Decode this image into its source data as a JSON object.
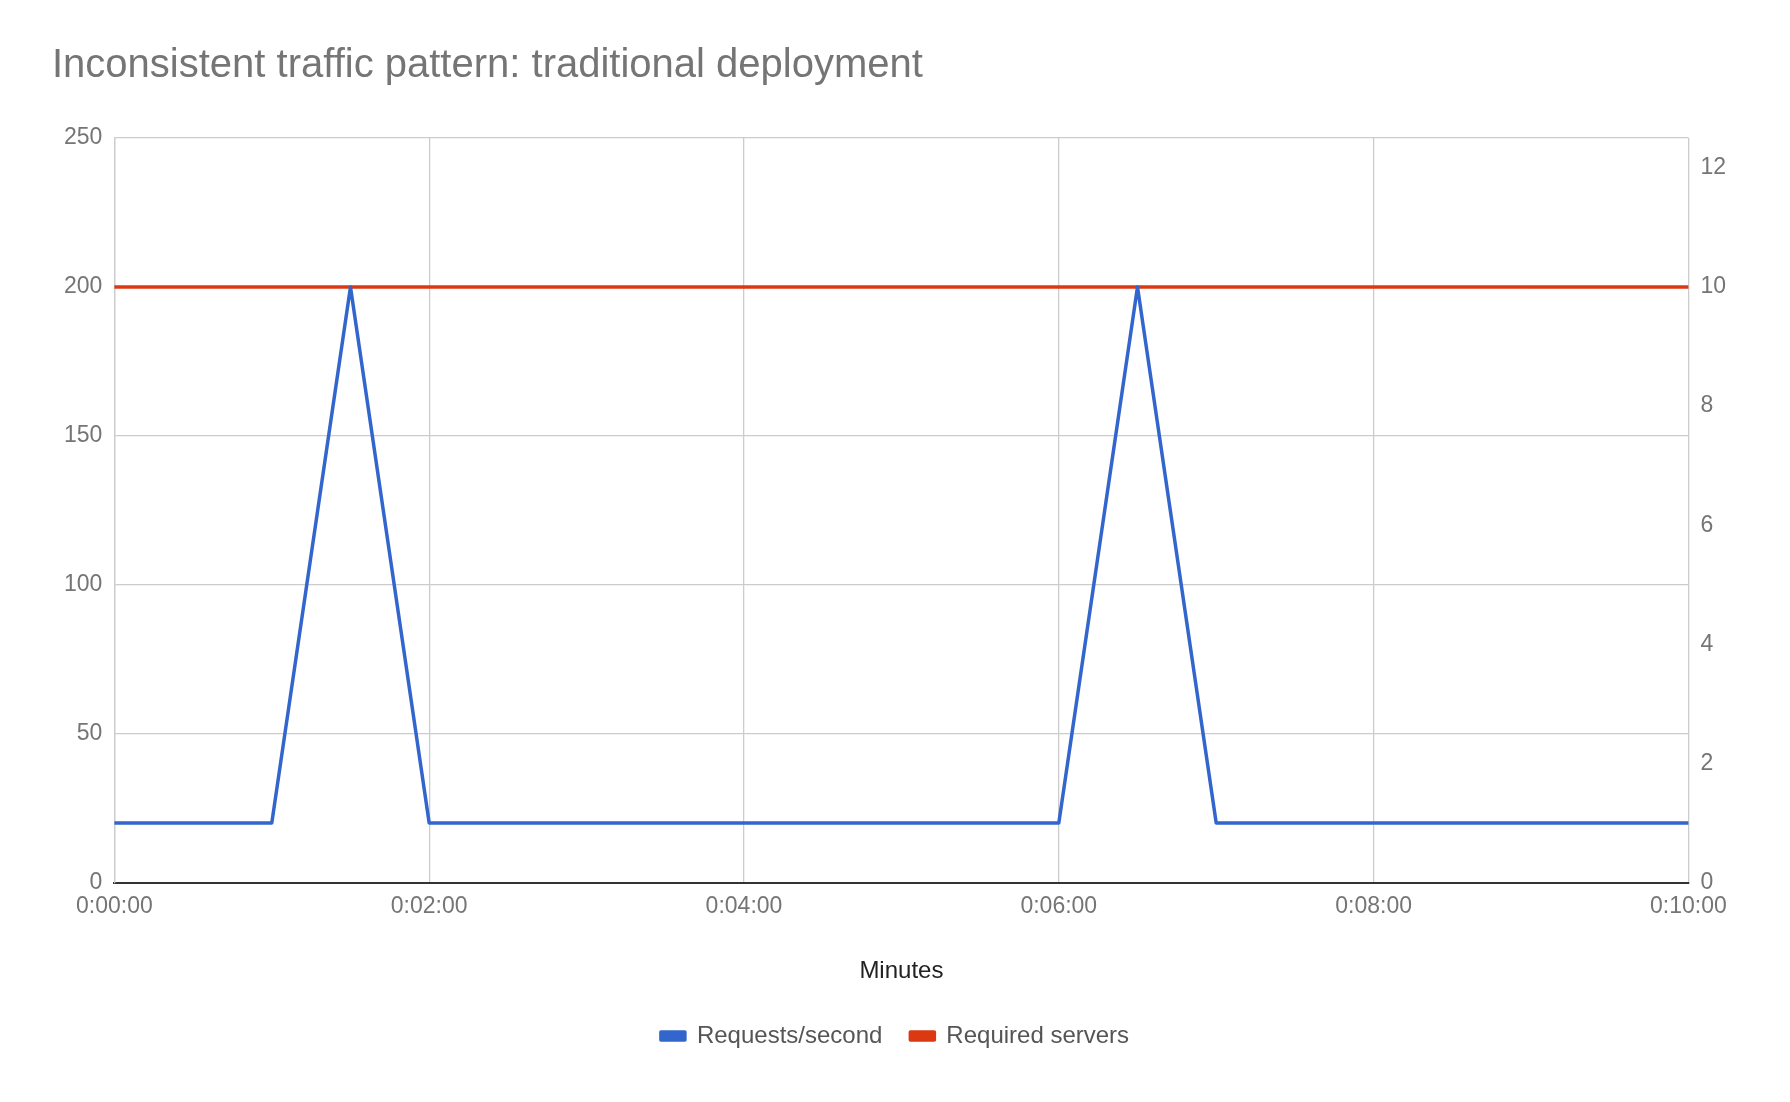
{
  "chart_data": {
    "type": "line",
    "title": "Inconsistent traffic pattern: traditional deployment",
    "xlabel": "Minutes",
    "x": [
      0,
      1,
      1.5,
      2,
      6,
      6.5,
      7,
      10
    ],
    "xlim": [
      0,
      10
    ],
    "xticks": [
      {
        "value": 0,
        "label": "0:00:00"
      },
      {
        "value": 2,
        "label": "0:02:00"
      },
      {
        "value": 4,
        "label": "0:04:00"
      },
      {
        "value": 6,
        "label": "0:06:00"
      },
      {
        "value": 8,
        "label": "0:08:00"
      },
      {
        "value": 10,
        "label": "0:10:00"
      }
    ],
    "ylim": [
      0,
      250
    ],
    "yticks": [
      0,
      50,
      100,
      150,
      200,
      250
    ],
    "y2lim": [
      0,
      12.5
    ],
    "y2ticks": [
      0,
      2,
      4,
      6,
      8,
      10,
      12
    ],
    "series": [
      {
        "name": "Requests/second",
        "color": "#3366cc",
        "values": [
          20,
          20,
          200,
          20,
          20,
          200,
          20,
          20
        ]
      },
      {
        "name": "Required servers",
        "color": "#dc3912",
        "axis": "y2",
        "values": [
          10,
          10,
          10,
          10,
          10,
          10,
          10,
          10
        ]
      }
    ],
    "grid": true,
    "legend": "bottom",
    "marker": "none",
    "line_style": "solid"
  }
}
